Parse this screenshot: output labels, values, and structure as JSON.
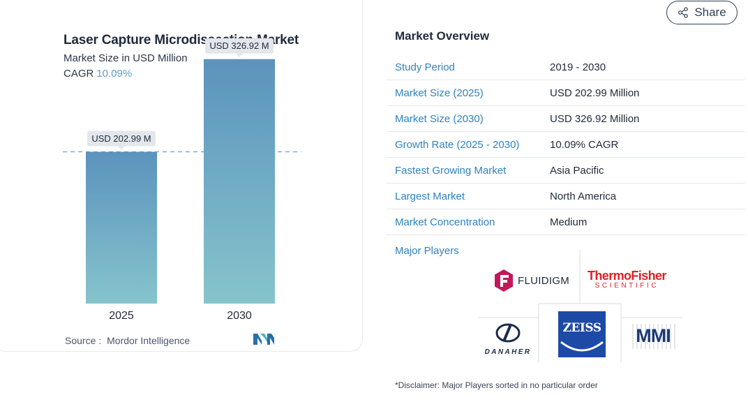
{
  "chart_card": {
    "title": "Laser Capture Microdissection Market",
    "subtitle": "Market Size in USD Million",
    "cagr_label": "CAGR",
    "cagr_value": "10.09%",
    "source_label": "Source :",
    "source_value": "Mordor Intelligence"
  },
  "chart_data": {
    "type": "bar",
    "title": "Laser Capture Microdissection Market",
    "subtitle": "Market Size in USD Million",
    "categories": [
      "2025",
      "2030"
    ],
    "values": [
      202.99,
      326.92
    ],
    "data_labels": [
      "USD 202.99 M",
      "USD 326.92 M"
    ],
    "ylim": [
      0,
      350
    ],
    "reference_line": 202.99,
    "grid": false,
    "colors": {
      "bar_top": "#5b93bd",
      "bar_bottom": "#86c4cc",
      "label_bg": "#e3e7ec",
      "reference_line": "#6b9fc6"
    }
  },
  "share_button": {
    "label": "Share",
    "icon": "share-icon"
  },
  "overview": {
    "title": "Market Overview",
    "rows": [
      {
        "label": "Study Period",
        "value": "2019 - 2030"
      },
      {
        "label": "Market Size (2025)",
        "value": "USD 202.99 Million"
      },
      {
        "label": "Market Size (2030)",
        "value": "USD 326.92 Million"
      },
      {
        "label": "Growth Rate (2025 - 2030)",
        "value": "10.09% CAGR"
      },
      {
        "label": "Fastest Growing Market",
        "value": "Asia Pacific"
      },
      {
        "label": "Largest Market",
        "value": "North America"
      },
      {
        "label": "Market Concentration",
        "value": "Medium"
      }
    ]
  },
  "major_players": {
    "title": "Major Players",
    "logos": {
      "fluidigm": "FLUIDIGM",
      "thermo_top": "ThermoFisher",
      "thermo_bottom": "SCIENTIFIC",
      "danaher": "DANAHER",
      "zeiss": "ZEISS",
      "mmi": "MMI"
    }
  },
  "disclaimer": "*Disclaimer: Major Players sorted in no particular order",
  "colors": {
    "accent": "#2f82c0",
    "cagr": "#5f9ec7",
    "thermo_red": "#e11f26",
    "zeiss_blue": "#1d4aa7"
  }
}
